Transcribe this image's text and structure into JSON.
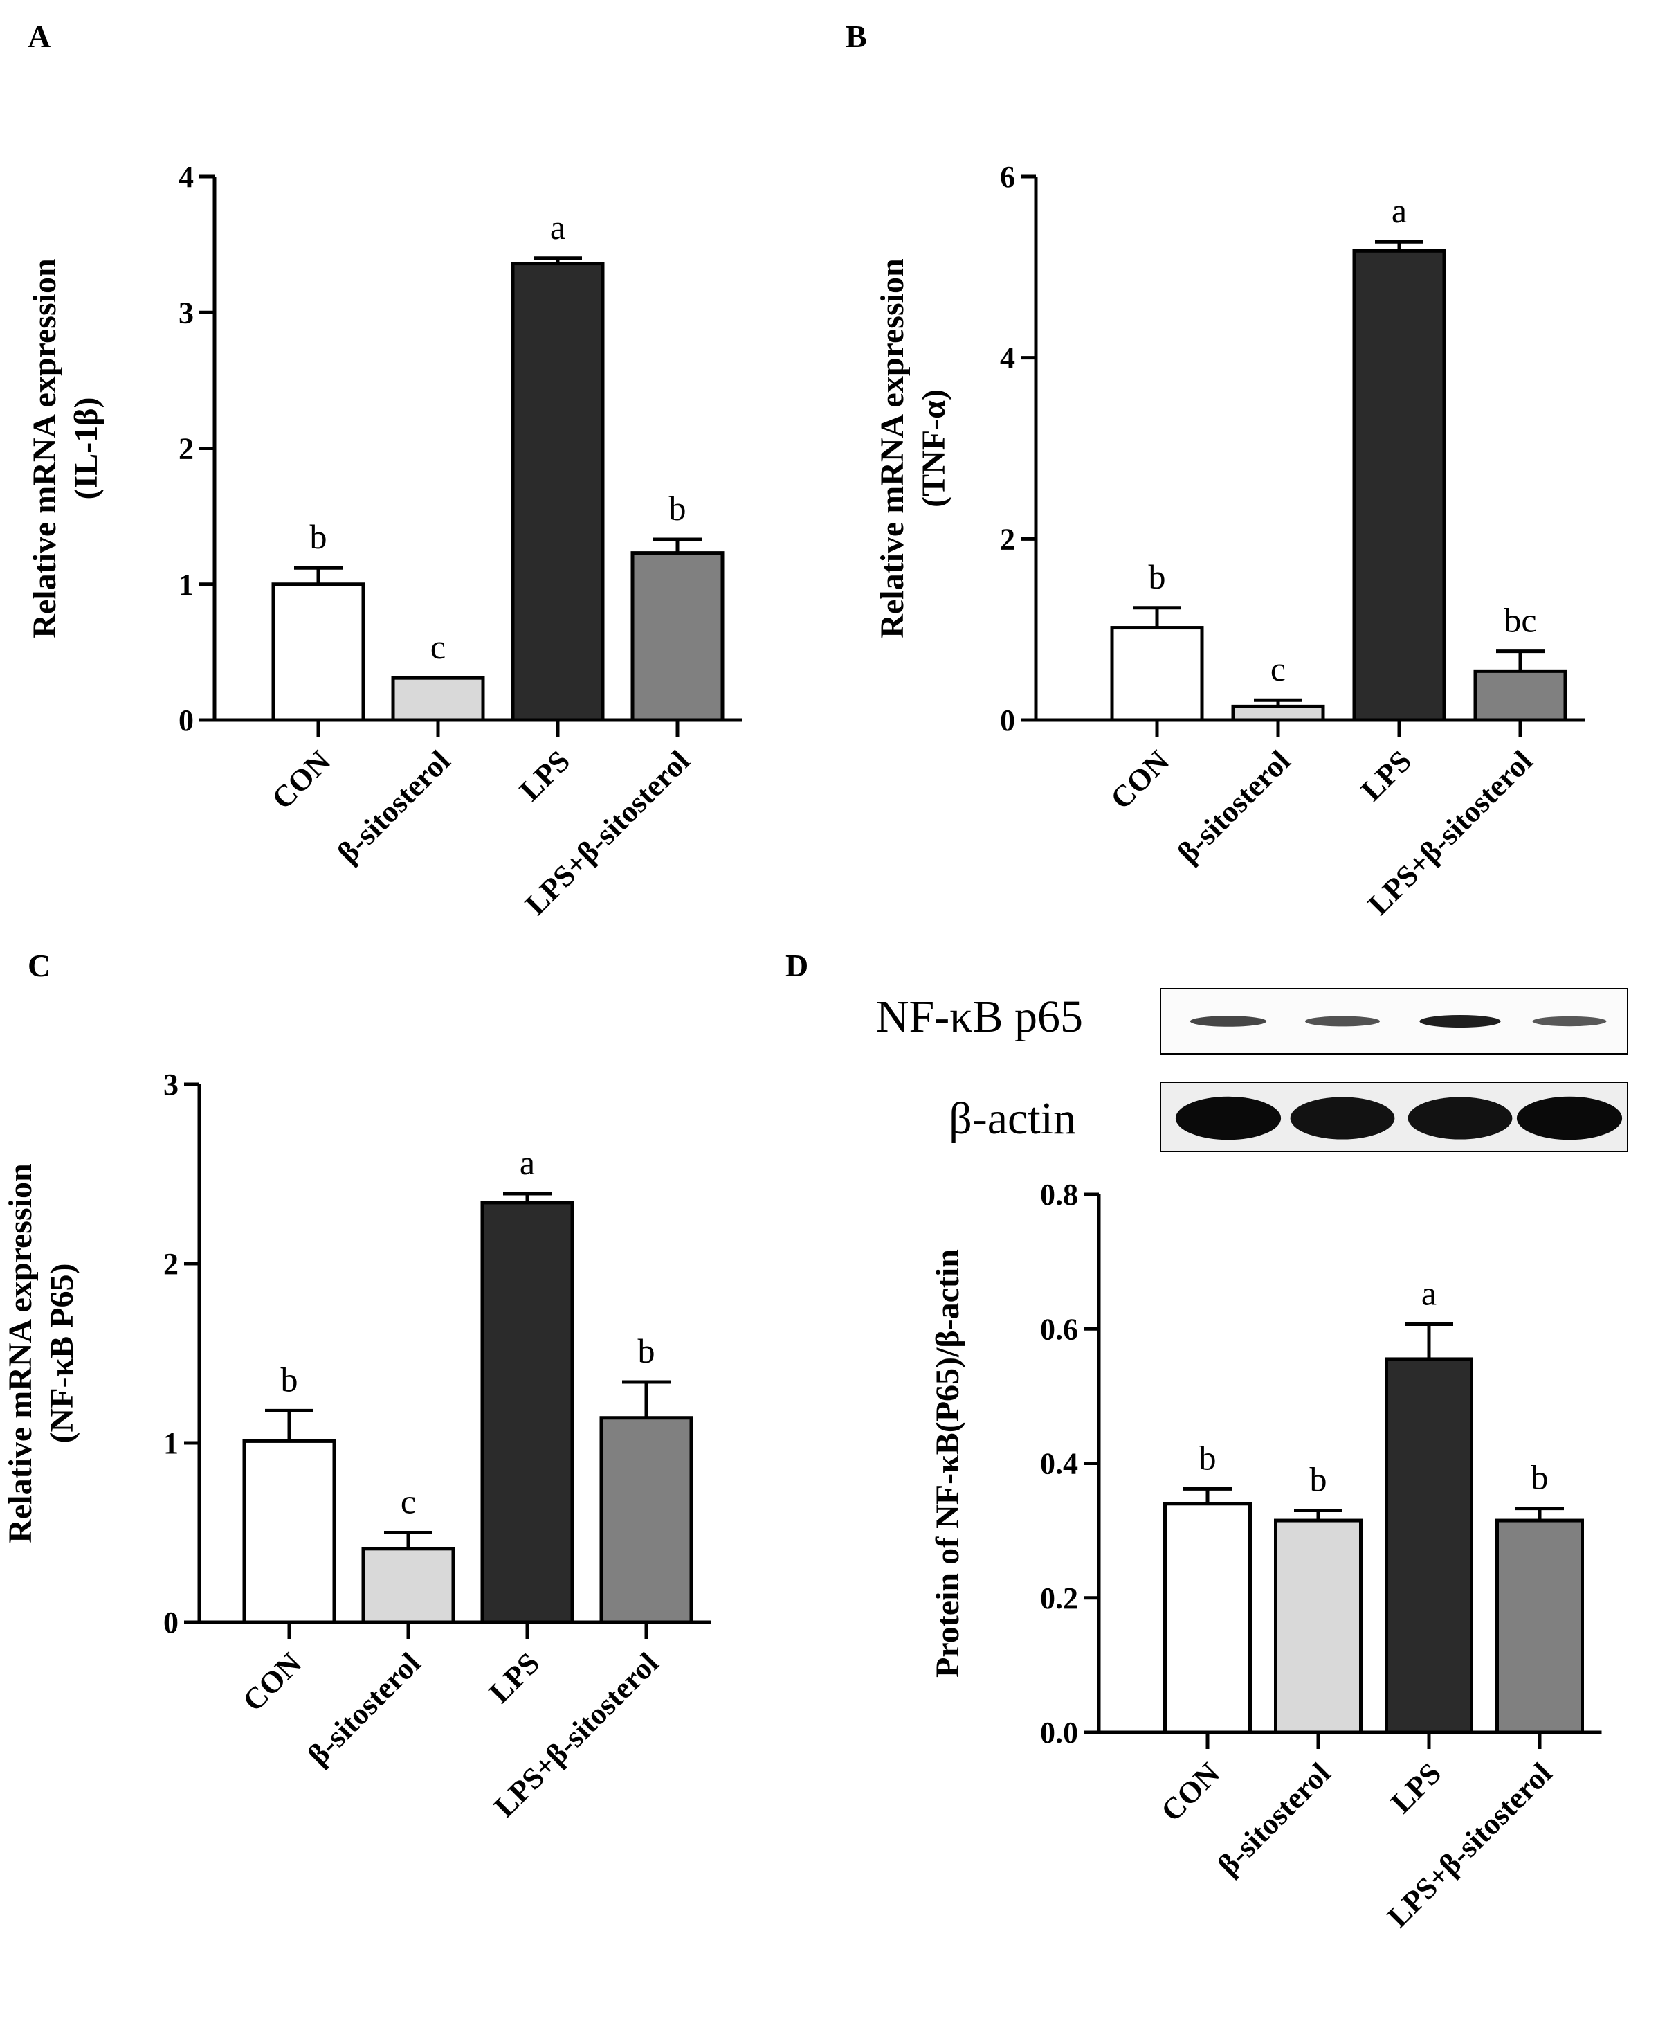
{
  "figure": {
    "panel_letters": [
      "A",
      "B",
      "C",
      "D"
    ],
    "blot": {
      "rows": [
        {
          "label": "NF-κB p65",
          "intensities": [
            0.55,
            0.45,
            0.85,
            0.4
          ]
        },
        {
          "label": "β-actin",
          "intensities": [
            1.0,
            0.95,
            0.95,
            1.0
          ]
        }
      ]
    }
  },
  "chart_data": [
    {
      "type": "bar",
      "panel": "A",
      "categories": [
        "CON",
        "β-sitosterol",
        "LPS",
        "LPS+β-sitosterol"
      ],
      "values": [
        1.0,
        0.31,
        3.36,
        1.23
      ],
      "errors": [
        0.12,
        0.0,
        0.04,
        0.1
      ],
      "significance": [
        "b",
        "c",
        "a",
        "b"
      ],
      "colors": [
        "#ffffff",
        "#d9d9d9",
        "#2b2b2b",
        "#808080"
      ],
      "ylabel_lines": [
        "Relative mRNA expression",
        "(IL-1β)"
      ],
      "ylim": [
        0,
        4
      ],
      "yticks": [
        0,
        1,
        2,
        3,
        4
      ],
      "ytick_labels": [
        "0",
        "1",
        "2",
        "3",
        "4"
      ]
    },
    {
      "type": "bar",
      "panel": "B",
      "categories": [
        "CON",
        "β-sitosterol",
        "LPS",
        "LPS+β-sitosterol"
      ],
      "values": [
        1.02,
        0.15,
        5.18,
        0.54
      ],
      "errors": [
        0.22,
        0.07,
        0.1,
        0.22
      ],
      "significance": [
        "b",
        "c",
        "a",
        "bc"
      ],
      "colors": [
        "#ffffff",
        "#d9d9d9",
        "#2b2b2b",
        "#808080"
      ],
      "ylabel_lines": [
        "Relative mRNA expression",
        "(TNF-α)"
      ],
      "ylim": [
        0,
        6
      ],
      "yticks": [
        0,
        2,
        4,
        6
      ],
      "ytick_labels": [
        "0",
        "2",
        "4",
        "6"
      ]
    },
    {
      "type": "bar",
      "panel": "C",
      "categories": [
        "CON",
        "β-sitosterol",
        "LPS",
        "LPS+β-sitosterol"
      ],
      "values": [
        1.01,
        0.41,
        2.34,
        1.14
      ],
      "errors": [
        0.17,
        0.09,
        0.05,
        0.2
      ],
      "significance": [
        "b",
        "c",
        "a",
        "b"
      ],
      "colors": [
        "#ffffff",
        "#d9d9d9",
        "#2b2b2b",
        "#808080"
      ],
      "ylabel_lines": [
        "Relative mRNA expression",
        "(NF-κB P65)"
      ],
      "ylim": [
        0,
        3
      ],
      "yticks": [
        0,
        1,
        2,
        3
      ],
      "ytick_labels": [
        "0",
        "1",
        "2",
        "3"
      ]
    },
    {
      "type": "bar",
      "panel": "D",
      "categories": [
        "CON",
        "β-sitosterol",
        "LPS",
        "LPS+β-sitosterol"
      ],
      "values": [
        0.34,
        0.315,
        0.555,
        0.315
      ],
      "errors": [
        0.022,
        0.015,
        0.052,
        0.018
      ],
      "significance": [
        "b",
        "b",
        "a",
        "b"
      ],
      "colors": [
        "#ffffff",
        "#d9d9d9",
        "#2b2b2b",
        "#808080"
      ],
      "ylabel_lines": [
        "Protein of NF-κB(P65)/β-actin"
      ],
      "ylim": [
        0,
        0.8
      ],
      "yticks": [
        0,
        0.2,
        0.4,
        0.6,
        0.8
      ],
      "ytick_labels": [
        "0.0",
        "0.2",
        "0.4",
        "0.6",
        "0.8"
      ]
    }
  ]
}
